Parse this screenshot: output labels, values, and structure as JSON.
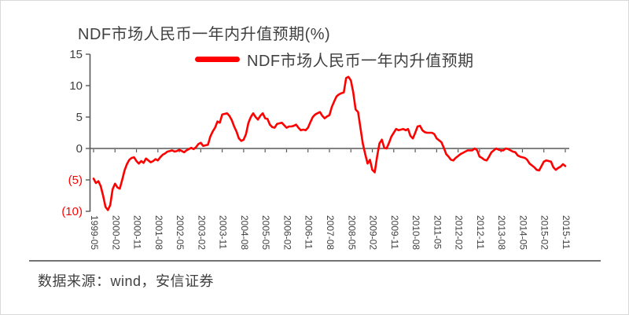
{
  "chart": {
    "title": "NDF市场人民币一年内升值预期(%)",
    "legend": {
      "label": "NDF市场人民币一年内升值预期",
      "marker_color": "#ff0000"
    },
    "source": "数据来源：wind，安信证券"
  },
  "colors": {
    "text": "#404040",
    "axis": "#595959",
    "negative_label": "#ff0000",
    "line": "#ff0000",
    "separator": "#737373"
  },
  "chart_data": {
    "type": "line",
    "title": "NDF市场人民币一年内升值预期(%)",
    "series_name": "NDF市场人民币一年内升值预期",
    "line_color": "#ff0000",
    "ylim": [
      -10,
      15
    ],
    "grid": "off",
    "legend_position": "top",
    "y_ticks": [
      15,
      10,
      5,
      0,
      -5,
      -10
    ],
    "y_tick_labels": [
      "15",
      "10",
      "5",
      "0",
      "(5)",
      "(10)"
    ],
    "x_tick_labels": [
      "1999-05",
      "2000-02",
      "2000-11",
      "2001-08",
      "2002-05",
      "2003-02",
      "2003-11",
      "2004-08",
      "2005-05",
      "2006-02",
      "2006-11",
      "2007-08",
      "2008-05",
      "2009-02",
      "2009-11",
      "2010-08",
      "2011-05",
      "2012-02",
      "2012-11",
      "2013-08",
      "2014-05",
      "2015-02",
      "2015-11"
    ],
    "x": [
      "1999-05",
      "1999-06",
      "1999-07",
      "1999-08",
      "1999-09",
      "1999-10",
      "1999-11",
      "1999-12",
      "2000-01",
      "2000-02",
      "2000-03",
      "2000-04",
      "2000-05",
      "2000-06",
      "2000-07",
      "2000-08",
      "2000-09",
      "2000-10",
      "2000-11",
      "2000-12",
      "2001-01",
      "2001-02",
      "2001-03",
      "2001-04",
      "2001-05",
      "2001-06",
      "2001-07",
      "2001-08",
      "2001-09",
      "2001-10",
      "2001-11",
      "2001-12",
      "2002-01",
      "2002-02",
      "2002-03",
      "2002-04",
      "2002-05",
      "2002-06",
      "2002-07",
      "2002-08",
      "2002-09",
      "2002-10",
      "2002-11",
      "2002-12",
      "2003-01",
      "2003-02",
      "2003-03",
      "2003-04",
      "2003-05",
      "2003-06",
      "2003-07",
      "2003-08",
      "2003-09",
      "2003-10",
      "2003-11",
      "2003-12",
      "2004-01",
      "2004-02",
      "2004-03",
      "2004-04",
      "2004-05",
      "2004-06",
      "2004-07",
      "2004-08",
      "2004-09",
      "2004-10",
      "2004-11",
      "2004-12",
      "2005-01",
      "2005-02",
      "2005-03",
      "2005-04",
      "2005-05",
      "2005-06",
      "2005-07",
      "2005-08",
      "2005-09",
      "2005-10",
      "2005-11",
      "2005-12",
      "2006-01",
      "2006-02",
      "2006-03",
      "2006-04",
      "2006-05",
      "2006-06",
      "2006-07",
      "2006-08",
      "2006-09",
      "2006-10",
      "2006-11",
      "2006-12",
      "2007-01",
      "2007-02",
      "2007-03",
      "2007-04",
      "2007-05",
      "2007-06",
      "2007-07",
      "2007-08",
      "2007-09",
      "2007-10",
      "2007-11",
      "2007-12",
      "2008-01",
      "2008-02",
      "2008-03",
      "2008-04",
      "2008-05",
      "2008-06",
      "2008-07",
      "2008-08",
      "2008-09",
      "2008-10",
      "2008-11",
      "2008-12",
      "2009-01",
      "2009-02",
      "2009-03",
      "2009-04",
      "2009-05",
      "2009-06",
      "2009-07",
      "2009-08",
      "2009-09",
      "2009-10",
      "2009-11",
      "2009-12",
      "2010-01",
      "2010-02",
      "2010-03",
      "2010-04",
      "2010-05",
      "2010-06",
      "2010-07",
      "2010-08",
      "2010-09",
      "2010-10",
      "2010-11",
      "2010-12",
      "2011-01",
      "2011-02",
      "2011-03",
      "2011-04",
      "2011-05",
      "2011-06",
      "2011-07",
      "2011-08",
      "2011-09",
      "2011-10",
      "2011-11",
      "2011-12",
      "2012-01",
      "2012-02",
      "2012-03",
      "2012-04",
      "2012-05",
      "2012-06",
      "2012-07",
      "2012-08",
      "2012-09",
      "2012-10",
      "2012-11",
      "2012-12",
      "2013-01",
      "2013-02",
      "2013-03",
      "2013-04",
      "2013-05",
      "2013-06",
      "2013-07",
      "2013-08",
      "2013-09",
      "2013-10",
      "2013-11",
      "2013-12",
      "2014-01",
      "2014-02",
      "2014-03",
      "2014-04",
      "2014-05",
      "2014-06",
      "2014-07",
      "2014-08",
      "2014-09",
      "2014-10",
      "2014-11",
      "2014-12",
      "2015-01",
      "2015-02",
      "2015-03",
      "2015-04",
      "2015-05",
      "2015-06",
      "2015-07",
      "2015-08",
      "2015-09",
      "2015-10",
      "2015-11"
    ],
    "values": [
      -4.8,
      -5.5,
      -5.2,
      -6.0,
      -7.5,
      -9.3,
      -9.8,
      -9.0,
      -6.5,
      -5.6,
      -6.2,
      -6.4,
      -5.0,
      -3.5,
      -2.5,
      -1.8,
      -1.5,
      -1.4,
      -2.0,
      -2.4,
      -2.0,
      -2.3,
      -1.6,
      -1.9,
      -2.2,
      -2.0,
      -1.7,
      -1.9,
      -1.4,
      -1.0,
      -0.8,
      -0.5,
      -0.4,
      -0.3,
      -0.5,
      -0.4,
      -0.2,
      -0.4,
      -0.6,
      -0.3,
      -0.1,
      0.1,
      -0.1,
      0.2,
      0.7,
      0.9,
      0.4,
      0.5,
      0.6,
      1.9,
      2.7,
      3.3,
      4.3,
      4.1,
      5.4,
      5.5,
      5.6,
      5.2,
      4.5,
      3.5,
      2.7,
      1.6,
      1.2,
      1.4,
      2.3,
      4.1,
      5.0,
      5.6,
      5.0,
      4.6,
      5.2,
      5.6,
      4.8,
      4.7,
      3.8,
      3.4,
      3.3,
      3.9,
      4.0,
      4.1,
      3.7,
      3.3,
      3.5,
      3.5,
      3.6,
      3.8,
      3.3,
      2.9,
      3.0,
      2.9,
      3.3,
      4.2,
      5.0,
      5.4,
      5.6,
      5.8,
      5.2,
      4.8,
      5.1,
      5.3,
      6.6,
      7.5,
      8.3,
      8.6,
      8.8,
      8.9,
      11.2,
      11.4,
      10.8,
      8.9,
      6.2,
      5.8,
      3.3,
      0.8,
      -0.9,
      -2.4,
      -1.8,
      -3.4,
      -3.8,
      -1.3,
      0.8,
      1.4,
      0.1,
      0.0,
      0.9,
      1.9,
      2.5,
      3.1,
      2.9,
      3.0,
      3.1,
      2.9,
      3.1,
      2.0,
      1.6,
      2.5,
      3.5,
      3.6,
      2.9,
      2.6,
      2.5,
      2.5,
      2.5,
      2.3,
      1.6,
      1.3,
      1.0,
      0.1,
      -0.9,
      -1.3,
      -1.8,
      -1.9,
      -1.5,
      -1.2,
      -0.9,
      -0.7,
      -0.5,
      -0.3,
      -0.3,
      -0.3,
      0.0,
      -0.3,
      -1.3,
      -1.5,
      -1.8,
      -1.9,
      -1.3,
      -0.6,
      -0.3,
      0.0,
      -0.2,
      -0.3,
      -0.3,
      0.0,
      -0.1,
      -0.3,
      -0.5,
      -0.6,
      -1.1,
      -1.3,
      -1.4,
      -1.5,
      -1.8,
      -2.4,
      -2.7,
      -3.0,
      -3.4,
      -3.5,
      -2.8,
      -2.1,
      -1.9,
      -2.0,
      -2.1,
      -3.0,
      -3.4,
      -3.1,
      -2.9,
      -2.5,
      -2.8
    ]
  }
}
